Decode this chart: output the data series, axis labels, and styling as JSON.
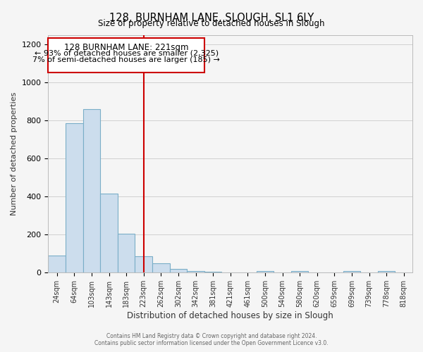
{
  "title": "128, BURNHAM LANE, SLOUGH, SL1 6LY",
  "subtitle": "Size of property relative to detached houses in Slough",
  "xlabel": "Distribution of detached houses by size in Slough",
  "ylabel": "Number of detached properties",
  "bar_labels": [
    "24sqm",
    "64sqm",
    "103sqm",
    "143sqm",
    "183sqm",
    "223sqm",
    "262sqm",
    "302sqm",
    "342sqm",
    "381sqm",
    "421sqm",
    "461sqm",
    "500sqm",
    "540sqm",
    "580sqm",
    "620sqm",
    "659sqm",
    "699sqm",
    "739sqm",
    "778sqm",
    "818sqm"
  ],
  "bar_heights": [
    90,
    785,
    860,
    415,
    205,
    85,
    50,
    20,
    8,
    5,
    0,
    0,
    8,
    0,
    8,
    0,
    0,
    8,
    0,
    8,
    0
  ],
  "bar_color": "#ccdded",
  "bar_edge_color": "#7aaec8",
  "annotation_label": "128 BURNHAM LANE: 221sqm",
  "annotation_line1": "← 93% of detached houses are smaller (2,325)",
  "annotation_line2": "7% of semi-detached houses are larger (185) →",
  "annotation_box_edge_color": "#cc0000",
  "vline_color": "#cc0000",
  "ylim": [
    0,
    1250
  ],
  "yticks": [
    0,
    200,
    400,
    600,
    800,
    1000,
    1200
  ],
  "footnote1": "Contains HM Land Registry data © Crown copyright and database right 2024.",
  "footnote2": "Contains public sector information licensed under the Open Government Licence v3.0.",
  "bg_color": "#f5f5f5"
}
